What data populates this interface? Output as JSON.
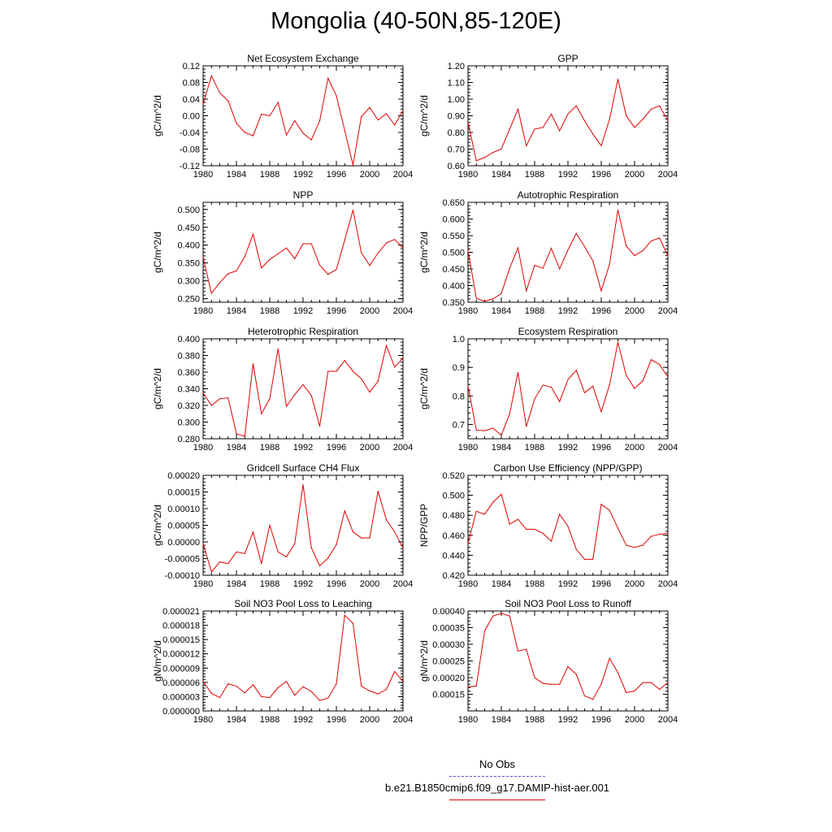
{
  "page": {
    "title": "Mongolia (40-50N,85-120E)"
  },
  "legend": {
    "items": [
      {
        "label": "No Obs",
        "color": "#5555dd",
        "style": "dashed"
      },
      {
        "label": "b.e21.B1850cmip6.f09_g17.DAMIP-hist-aer.001",
        "color": "#e00000",
        "style": "solid"
      }
    ]
  },
  "chart_data": [
    {
      "type": "line",
      "title": "Net Ecosystem Exchange",
      "ylabel": "gC/m^2/d",
      "x": [
        1980,
        1981,
        1982,
        1983,
        1984,
        1985,
        1986,
        1987,
        1988,
        1989,
        1990,
        1991,
        1992,
        1993,
        1994,
        1995,
        1996,
        1997,
        1998,
        1999,
        2000,
        2001,
        2002,
        2003,
        2004
      ],
      "xlim": [
        1980,
        2004
      ],
      "xticks": [
        "1980",
        "1984",
        "1988",
        "1992",
        "1996",
        "2000",
        "2004"
      ],
      "ylim": [
        -0.12,
        0.12
      ],
      "yticks": [
        "-0.12",
        "-0.08",
        "-0.04",
        "0.00",
        "0.04",
        "0.08",
        "0.12"
      ],
      "series": [
        {
          "color": "#e00000",
          "values": [
            0.028,
            0.096,
            0.055,
            0.036,
            -0.018,
            -0.04,
            -0.048,
            0.004,
            0.0,
            0.032,
            -0.046,
            -0.012,
            -0.042,
            -0.058,
            -0.012,
            0.09,
            0.048,
            -0.035,
            -0.118,
            -0.002,
            0.02,
            -0.01,
            0.005,
            -0.022,
            0.012
          ]
        }
      ]
    },
    {
      "type": "line",
      "title": "GPP",
      "ylabel": "gC/m^2/d",
      "x": [
        1980,
        1981,
        1982,
        1983,
        1984,
        1985,
        1986,
        1987,
        1988,
        1989,
        1990,
        1991,
        1992,
        1993,
        1994,
        1995,
        1996,
        1997,
        1998,
        1999,
        2000,
        2001,
        2002,
        2003,
        2004
      ],
      "xlim": [
        1980,
        2004
      ],
      "xticks": [
        "1980",
        "1984",
        "1988",
        "1992",
        "1996",
        "2000",
        "2004"
      ],
      "ylim": [
        0.6,
        1.2
      ],
      "yticks": [
        "0.60",
        "0.70",
        "0.80",
        "0.90",
        "1.00",
        "1.10",
        "1.20"
      ],
      "series": [
        {
          "color": "#e00000",
          "values": [
            0.86,
            0.63,
            0.65,
            0.68,
            0.7,
            0.82,
            0.94,
            0.72,
            0.82,
            0.83,
            0.91,
            0.81,
            0.91,
            0.96,
            0.87,
            0.79,
            0.72,
            0.88,
            1.12,
            0.9,
            0.83,
            0.88,
            0.94,
            0.96,
            0.87
          ]
        }
      ]
    },
    {
      "type": "line",
      "title": "NPP",
      "ylabel": "gC/m^2/d",
      "x": [
        1980,
        1981,
        1982,
        1983,
        1984,
        1985,
        1986,
        1987,
        1988,
        1989,
        1990,
        1991,
        1992,
        1993,
        1994,
        1995,
        1996,
        1997,
        1998,
        1999,
        2000,
        2001,
        2002,
        2003,
        2004
      ],
      "xlim": [
        1980,
        2004
      ],
      "xticks": [
        "1980",
        "1984",
        "1988",
        "1992",
        "1996",
        "2000",
        "2004"
      ],
      "ylim": [
        0.24,
        0.52
      ],
      "yticks": [
        "0.250",
        "0.300",
        "0.350",
        "0.400",
        "0.450",
        "0.500"
      ],
      "series": [
        {
          "color": "#e00000",
          "values": [
            0.365,
            0.265,
            0.295,
            0.32,
            0.328,
            0.368,
            0.431,
            0.336,
            0.36,
            0.376,
            0.392,
            0.362,
            0.404,
            0.404,
            0.344,
            0.318,
            0.332,
            0.414,
            0.498,
            0.379,
            0.343,
            0.378,
            0.406,
            0.416,
            0.392
          ]
        }
      ]
    },
    {
      "type": "line",
      "title": "Autotrophic Respiration",
      "ylabel": "gC/m^2/d",
      "x": [
        1980,
        1981,
        1982,
        1983,
        1984,
        1985,
        1986,
        1987,
        1988,
        1989,
        1990,
        1991,
        1992,
        1993,
        1994,
        1995,
        1996,
        1997,
        1998,
        1999,
        2000,
        2001,
        2002,
        2003,
        2004
      ],
      "xlim": [
        1980,
        2004
      ],
      "xticks": [
        "1980",
        "1984",
        "1988",
        "1992",
        "1996",
        "2000",
        "2004"
      ],
      "ylim": [
        0.35,
        0.65
      ],
      "yticks": [
        "0.350",
        "0.400",
        "0.450",
        "0.500",
        "0.550",
        "0.600",
        "0.650"
      ],
      "series": [
        {
          "color": "#e00000",
          "values": [
            0.505,
            0.362,
            0.353,
            0.36,
            0.376,
            0.452,
            0.513,
            0.384,
            0.461,
            0.452,
            0.512,
            0.45,
            0.507,
            0.557,
            0.517,
            0.474,
            0.384,
            0.465,
            0.627,
            0.519,
            0.49,
            0.505,
            0.534,
            0.543,
            0.489
          ]
        }
      ]
    },
    {
      "type": "line",
      "title": "Heterotrophic Respiration",
      "ylabel": "gC/m^2/d",
      "x": [
        1980,
        1981,
        1982,
        1983,
        1984,
        1985,
        1986,
        1987,
        1988,
        1989,
        1990,
        1991,
        1992,
        1993,
        1994,
        1995,
        1996,
        1997,
        1998,
        1999,
        2000,
        2001,
        2002,
        2003,
        2004
      ],
      "xlim": [
        1980,
        2004
      ],
      "xticks": [
        "1980",
        "1984",
        "1988",
        "1992",
        "1996",
        "2000",
        "2004"
      ],
      "ylim": [
        0.28,
        0.4
      ],
      "yticks": [
        "0.280",
        "0.300",
        "0.320",
        "0.340",
        "0.360",
        "0.380",
        "0.400"
      ],
      "series": [
        {
          "color": "#e00000",
          "values": [
            0.335,
            0.32,
            0.328,
            0.329,
            0.286,
            0.283,
            0.37,
            0.31,
            0.328,
            0.388,
            0.319,
            0.333,
            0.345,
            0.332,
            0.295,
            0.361,
            0.361,
            0.374,
            0.361,
            0.352,
            0.336,
            0.349,
            0.392,
            0.366,
            0.377
          ]
        }
      ]
    },
    {
      "type": "line",
      "title": "Ecosystem Respiration",
      "ylabel": "gC/m^2/d",
      "x": [
        1980,
        1981,
        1982,
        1983,
        1984,
        1985,
        1986,
        1987,
        1988,
        1989,
        1990,
        1991,
        1992,
        1993,
        1994,
        1995,
        1996,
        1997,
        1998,
        1999,
        2000,
        2001,
        2002,
        2003,
        2004
      ],
      "xlim": [
        1980,
        2004
      ],
      "xticks": [
        "1980",
        "1984",
        "1988",
        "1992",
        "1996",
        "2000",
        "2004"
      ],
      "ylim": [
        0.65,
        1.0
      ],
      "yticks": [
        "0.7",
        "0.8",
        "0.9",
        "1.0"
      ],
      "series": [
        {
          "color": "#e00000",
          "values": [
            0.835,
            0.68,
            0.678,
            0.687,
            0.662,
            0.737,
            0.882,
            0.693,
            0.789,
            0.838,
            0.831,
            0.78,
            0.857,
            0.89,
            0.811,
            0.834,
            0.745,
            0.839,
            0.988,
            0.872,
            0.826,
            0.853,
            0.927,
            0.91,
            0.866
          ]
        }
      ]
    },
    {
      "type": "line",
      "title": "Gridcell Surface CH4 Flux",
      "ylabel": "gC/m^2/d",
      "x": [
        1980,
        1981,
        1982,
        1983,
        1984,
        1985,
        1986,
        1987,
        1988,
        1989,
        1990,
        1991,
        1992,
        1993,
        1994,
        1995,
        1996,
        1997,
        1998,
        1999,
        2000,
        2001,
        2002,
        2003,
        2004
      ],
      "xlim": [
        1980,
        2004
      ],
      "xticks": [
        "1980",
        "1984",
        "1988",
        "1992",
        "1996",
        "2000",
        "2004"
      ],
      "ylim": [
        -0.0001,
        0.0002
      ],
      "yticks": [
        "-0.00010",
        "-0.00005",
        "0.00000",
        "0.00005",
        "0.00010",
        "0.00015",
        "0.00020"
      ],
      "series": [
        {
          "color": "#e00000",
          "values": [
            -5e-06,
            -9e-05,
            -6e-05,
            -6.5e-05,
            -3e-05,
            -3.5e-05,
            3e-05,
            -6.5e-05,
            5e-05,
            -3e-05,
            -4.5e-05,
            -5e-06,
            0.000172,
            -1.8e-05,
            -7.2e-05,
            -4.8e-05,
            -8e-06,
            9.3e-05,
            3e-05,
            1.2e-05,
            1.2e-05,
            0.000152,
            6.7e-05,
            3e-05,
            -1.8e-05
          ]
        }
      ]
    },
    {
      "type": "line",
      "title": "Carbon Use Efficiency (NPP/GPP)",
      "ylabel": "NPP/GPP",
      "x": [
        1980,
        1981,
        1982,
        1983,
        1984,
        1985,
        1986,
        1987,
        1988,
        1989,
        1990,
        1991,
        1992,
        1993,
        1994,
        1995,
        1996,
        1997,
        1998,
        1999,
        2000,
        2001,
        2002,
        2003,
        2004
      ],
      "xlim": [
        1980,
        2004
      ],
      "xticks": [
        "1980",
        "1984",
        "1988",
        "1992",
        "1996",
        "2000",
        "2004"
      ],
      "ylim": [
        0.42,
        0.52
      ],
      "yticks": [
        "0.420",
        "0.440",
        "0.460",
        "0.480",
        "0.500",
        "0.520"
      ],
      "series": [
        {
          "color": "#e00000",
          "values": [
            0.452,
            0.484,
            0.481,
            0.493,
            0.501,
            0.471,
            0.476,
            0.466,
            0.466,
            0.462,
            0.454,
            0.481,
            0.469,
            0.446,
            0.436,
            0.436,
            0.491,
            0.485,
            0.467,
            0.45,
            0.448,
            0.45,
            0.459,
            0.461,
            0.462
          ]
        }
      ]
    },
    {
      "type": "line",
      "title": "Soil NO3 Pool Loss to Leaching",
      "ylabel": "gN/m^2/d",
      "x": [
        1980,
        1981,
        1982,
        1983,
        1984,
        1985,
        1986,
        1987,
        1988,
        1989,
        1990,
        1991,
        1992,
        1993,
        1994,
        1995,
        1996,
        1997,
        1998,
        1999,
        2000,
        2001,
        2002,
        2003,
        2004
      ],
      "xlim": [
        1980,
        2004
      ],
      "xticks": [
        "1980",
        "1984",
        "1988",
        "1992",
        "1996",
        "2000",
        "2004"
      ],
      "ylim": [
        0.0,
        2.1e-05
      ],
      "yticks": [
        "0.000000",
        "0.000003",
        "0.000006",
        "0.000009",
        "0.000012",
        "0.000015",
        "0.000018",
        "0.000021"
      ],
      "series": [
        {
          "color": "#e00000",
          "values": [
            6.2e-06,
            3.7e-06,
            2.8e-06,
            5.7e-06,
            5.2e-06,
            3.8e-06,
            5.5e-06,
            3e-06,
            2.8e-06,
            4.9e-06,
            6.2e-06,
            3.3e-06,
            5.1e-06,
            4.1e-06,
            2.2e-06,
            2.7e-06,
            5.7e-06,
            2.01e-05,
            1.84e-05,
            5.2e-06,
            4.2e-06,
            3.6e-06,
            4.5e-06,
            8.3e-06,
            6.2e-06
          ]
        }
      ]
    },
    {
      "type": "line",
      "title": "Soil NO3 Pool Loss to Runoff",
      "ylabel": "gN/m^2/d",
      "x": [
        1980,
        1981,
        1982,
        1983,
        1984,
        1985,
        1986,
        1987,
        1988,
        1989,
        1990,
        1991,
        1992,
        1993,
        1994,
        1995,
        1996,
        1997,
        1998,
        1999,
        2000,
        2001,
        2002,
        2003,
        2004
      ],
      "xlim": [
        1980,
        2004
      ],
      "xticks": [
        "1980",
        "1984",
        "1988",
        "1992",
        "1996",
        "2000",
        "2004"
      ],
      "ylim": [
        0.0001,
        0.0004
      ],
      "yticks": [
        "0.00015",
        "0.00020",
        "0.00025",
        "0.00030",
        "0.00035",
        "0.00040"
      ],
      "series": [
        {
          "color": "#e00000",
          "values": [
            0.000172,
            0.000175,
            0.00034,
            0.000385,
            0.000393,
            0.000385,
            0.00028,
            0.000285,
            0.0002,
            0.000183,
            0.00018,
            0.00018,
            0.000233,
            0.00021,
            0.000145,
            0.000135,
            0.00018,
            0.000258,
            0.000215,
            0.000155,
            0.00016,
            0.000185,
            0.000185,
            0.000165,
            0.000185
          ]
        }
      ]
    }
  ]
}
